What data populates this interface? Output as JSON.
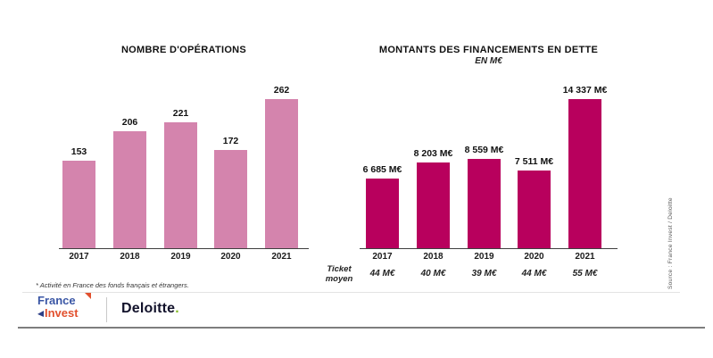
{
  "footnote": {
    "text": "* Activité en France des fonds français et étrangers."
  },
  "source_note": {
    "text": "Source : France Invest / Deloitte"
  },
  "logos": {
    "france_invest": {
      "line1": "France",
      "line2": "Invest",
      "blue": "#3a56a5",
      "orange": "#e2502d"
    },
    "deloitte": {
      "name": "Deloitte",
      "dot": ".",
      "dot_color": "#86bc25"
    }
  },
  "colors": {
    "left_bars": "#d484ad",
    "right_bars": "#b8005d",
    "axis": "#3f3f3f"
  },
  "chart_data": [
    {
      "type": "bar",
      "title": "NOMBRE D'OPÉRATIONS",
      "categories": [
        "2017",
        "2018",
        "2019",
        "2020",
        "2021"
      ],
      "values": [
        153,
        206,
        221,
        172,
        262
      ],
      "value_labels": [
        "153",
        "206",
        "221",
        "172",
        "262"
      ],
      "bar_color": "#d484ad",
      "xlabel": "",
      "ylabel": "",
      "ylim": [
        0,
        262
      ],
      "grid": false,
      "legend": false
    },
    {
      "type": "bar",
      "title": "MONTANTS DES FINANCEMENTS EN DETTE",
      "subtitle": "EN M€",
      "categories": [
        "2017",
        "2018",
        "2019",
        "2020",
        "2021"
      ],
      "values": [
        6685,
        8203,
        8559,
        7511,
        14337
      ],
      "value_labels": [
        "6 685 M€",
        "8 203 M€",
        "8 559 M€",
        "7 511 M€",
        "14 337 M€"
      ],
      "bar_color": "#b8005d",
      "xlabel": "",
      "ylabel": "",
      "ylim": [
        0,
        14337
      ],
      "grid": false,
      "legend": false,
      "ticket": {
        "label_line1": "Ticket",
        "label_line2": "moyen",
        "values": [
          "44 M€",
          "40 M€",
          "39 M€",
          "44 M€",
          "55 M€"
        ]
      }
    }
  ]
}
